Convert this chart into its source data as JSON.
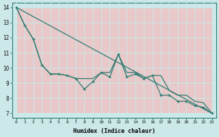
{
  "xlabel": "Humidex (Indice chaleur)",
  "bg_color": "#cce8e8",
  "grid_bg_color": "#e8c8c8",
  "line_color": "#2a7a70",
  "xlim": [
    -0.5,
    23.5
  ],
  "ylim": [
    6.7,
    14.3
  ],
  "yticks": [
    7,
    8,
    9,
    10,
    11,
    12,
    13,
    14
  ],
  "xticks": [
    0,
    1,
    2,
    3,
    4,
    5,
    6,
    7,
    8,
    9,
    10,
    11,
    12,
    13,
    14,
    15,
    16,
    17,
    18,
    19,
    20,
    21,
    22,
    23
  ],
  "line1_x": [
    0,
    1,
    2,
    3,
    4,
    5,
    6,
    7,
    8,
    9,
    10,
    11,
    12,
    13,
    14,
    15,
    16,
    17,
    18,
    19,
    20,
    21,
    22,
    23
  ],
  "line1_y": [
    14.0,
    12.8,
    11.9,
    10.2,
    9.6,
    9.6,
    9.5,
    9.3,
    8.6,
    9.1,
    9.7,
    9.4,
    10.9,
    9.4,
    9.6,
    9.3,
    9.5,
    8.2,
    8.2,
    7.8,
    7.8,
    7.5,
    7.4,
    7.0
  ],
  "line2_x": [
    0,
    1,
    2,
    3,
    4,
    5,
    6,
    7,
    8,
    9,
    10,
    11,
    12,
    13,
    14,
    15,
    16,
    17,
    18,
    19,
    20,
    21,
    22,
    23
  ],
  "line2_y": [
    14.0,
    12.8,
    11.9,
    10.2,
    9.6,
    9.6,
    9.5,
    9.3,
    9.3,
    9.3,
    9.7,
    9.7,
    10.9,
    9.7,
    9.7,
    9.3,
    9.5,
    9.5,
    8.5,
    8.2,
    8.2,
    7.8,
    7.7,
    7.0
  ],
  "line3_x": [
    0,
    23
  ],
  "line3_y": [
    14.0,
    7.0
  ]
}
